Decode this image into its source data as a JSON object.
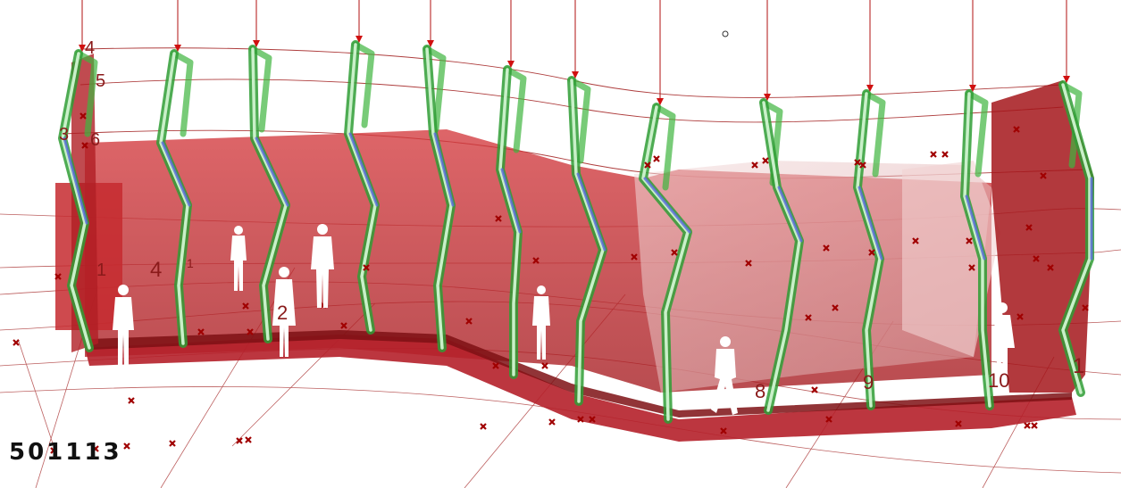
{
  "labels": {
    "n1": "1",
    "n2": "2",
    "n3": "3",
    "n4": "4",
    "n5": "5",
    "n6": "6",
    "n8": "8",
    "n9": "9",
    "n10": "10",
    "n4b": "4",
    "n1b": "1",
    "n1c": "1",
    "code": "501113"
  },
  "colors": {
    "wall": "#c0282c",
    "wall_dark": "#8e1418",
    "glass": "#e8c4c4",
    "frame_green": "#3fb53f",
    "frame_blue": "#5b6de0",
    "line": "#a01c1c",
    "marker": "#a00000",
    "figure": "#ffffff"
  }
}
